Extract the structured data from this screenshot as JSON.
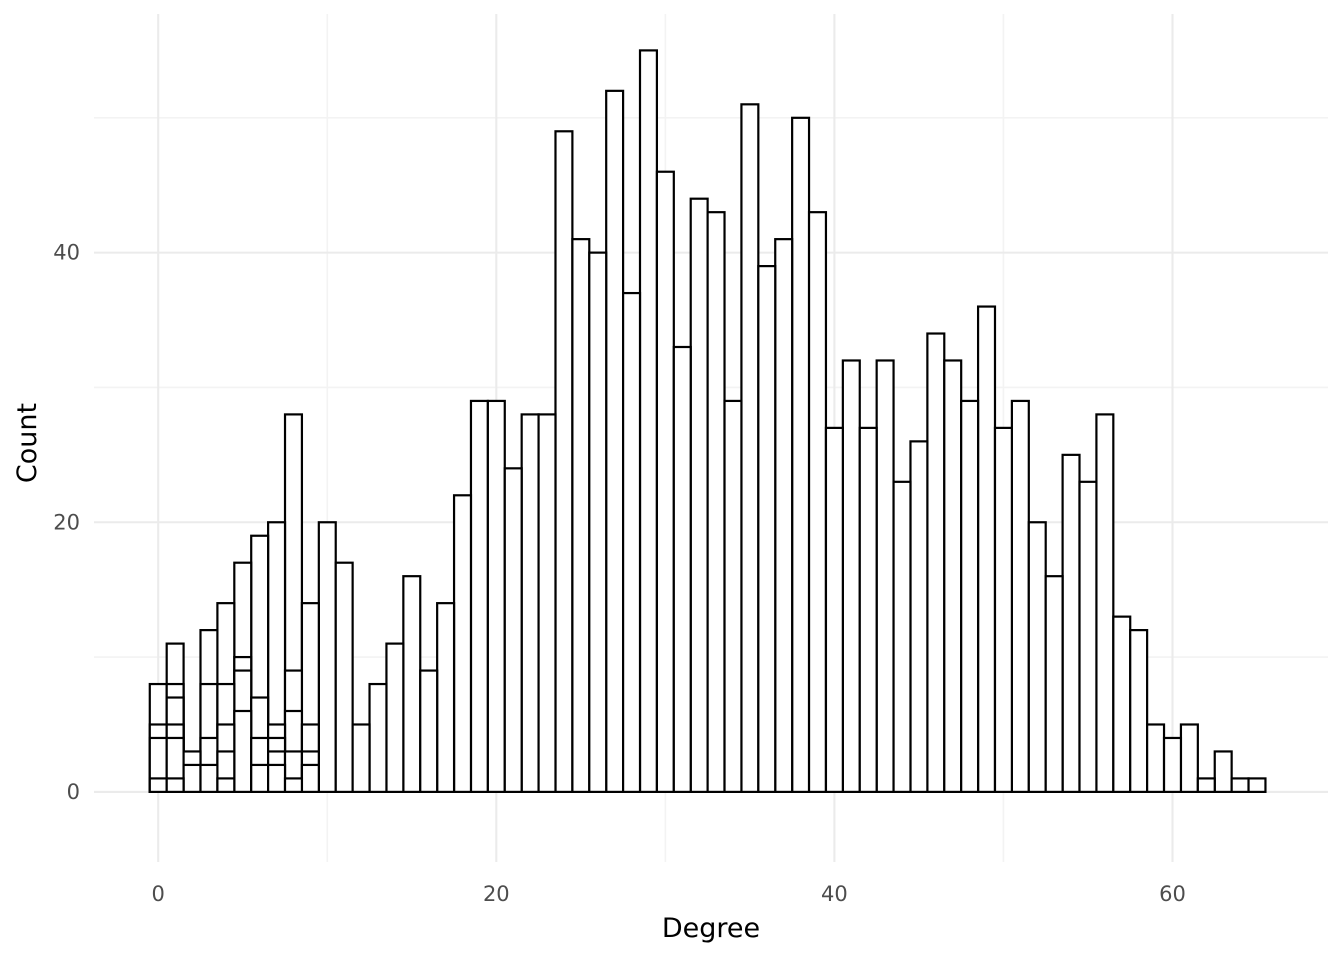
{
  "chart_data": {
    "type": "bar",
    "title": "",
    "xlabel": "Degree",
    "ylabel": "Count",
    "xlim": [
      -3.8,
      69.2
    ],
    "ylim": [
      -5.2,
      57.7
    ],
    "x_ticks": [
      0,
      20,
      40,
      60
    ],
    "y_ticks": [
      0,
      20,
      40
    ],
    "grid": true,
    "legend": "none",
    "binwidth": 1,
    "series": [
      {
        "values": [
          {
            "x": 0,
            "y": 8
          },
          {
            "x": 0,
            "y": 5
          },
          {
            "x": 0,
            "y": 4
          },
          {
            "x": 0,
            "y": 1
          },
          {
            "x": 1,
            "y": 11
          },
          {
            "x": 1,
            "y": 8
          },
          {
            "x": 1,
            "y": 7
          },
          {
            "x": 1,
            "y": 5
          },
          {
            "x": 1,
            "y": 4
          },
          {
            "x": 1,
            "y": 1
          },
          {
            "x": 2,
            "y": 3
          },
          {
            "x": 2,
            "y": 2
          },
          {
            "x": 3,
            "y": 12
          },
          {
            "x": 3,
            "y": 8
          },
          {
            "x": 3,
            "y": 4
          },
          {
            "x": 3,
            "y": 2
          },
          {
            "x": 4,
            "y": 14
          },
          {
            "x": 4,
            "y": 8
          },
          {
            "x": 4,
            "y": 5
          },
          {
            "x": 4,
            "y": 3
          },
          {
            "x": 4,
            "y": 1
          },
          {
            "x": 5,
            "y": 17
          },
          {
            "x": 5,
            "y": 10
          },
          {
            "x": 5,
            "y": 9
          },
          {
            "x": 5,
            "y": 6
          },
          {
            "x": 6,
            "y": 19
          },
          {
            "x": 6,
            "y": 7
          },
          {
            "x": 6,
            "y": 4
          },
          {
            "x": 6,
            "y": 2
          },
          {
            "x": 7,
            "y": 20
          },
          {
            "x": 7,
            "y": 5
          },
          {
            "x": 7,
            "y": 4
          },
          {
            "x": 7,
            "y": 3
          },
          {
            "x": 7,
            "y": 2
          },
          {
            "x": 8,
            "y": 28
          },
          {
            "x": 8,
            "y": 9
          },
          {
            "x": 8,
            "y": 6
          },
          {
            "x": 8,
            "y": 3
          },
          {
            "x": 8,
            "y": 1
          },
          {
            "x": 9,
            "y": 14
          },
          {
            "x": 9,
            "y": 5
          },
          {
            "x": 9,
            "y": 3
          },
          {
            "x": 9,
            "y": 2
          },
          {
            "x": 10,
            "y": 20
          },
          {
            "x": 11,
            "y": 17
          },
          {
            "x": 12,
            "y": 5
          },
          {
            "x": 13,
            "y": 8
          },
          {
            "x": 14,
            "y": 11
          },
          {
            "x": 15,
            "y": 16
          },
          {
            "x": 16,
            "y": 9
          },
          {
            "x": 17,
            "y": 14
          },
          {
            "x": 18,
            "y": 22
          },
          {
            "x": 19,
            "y": 29
          },
          {
            "x": 20,
            "y": 29
          },
          {
            "x": 21,
            "y": 24
          },
          {
            "x": 22,
            "y": 28
          },
          {
            "x": 23,
            "y": 28
          },
          {
            "x": 24,
            "y": 49
          },
          {
            "x": 25,
            "y": 41
          },
          {
            "x": 26,
            "y": 40
          },
          {
            "x": 27,
            "y": 52
          },
          {
            "x": 28,
            "y": 37
          },
          {
            "x": 29,
            "y": 55
          },
          {
            "x": 30,
            "y": 46
          },
          {
            "x": 31,
            "y": 33
          },
          {
            "x": 32,
            "y": 44
          },
          {
            "x": 33,
            "y": 43
          },
          {
            "x": 34,
            "y": 29
          },
          {
            "x": 35,
            "y": 51
          },
          {
            "x": 36,
            "y": 39
          },
          {
            "x": 37,
            "y": 41
          },
          {
            "x": 38,
            "y": 50
          },
          {
            "x": 39,
            "y": 43
          },
          {
            "x": 40,
            "y": 27
          },
          {
            "x": 41,
            "y": 32
          },
          {
            "x": 42,
            "y": 27
          },
          {
            "x": 43,
            "y": 32
          },
          {
            "x": 44,
            "y": 23
          },
          {
            "x": 45,
            "y": 26
          },
          {
            "x": 46,
            "y": 34
          },
          {
            "x": 47,
            "y": 32
          },
          {
            "x": 48,
            "y": 29
          },
          {
            "x": 49,
            "y": 36
          },
          {
            "x": 50,
            "y": 27
          },
          {
            "x": 51,
            "y": 29
          },
          {
            "x": 52,
            "y": 20
          },
          {
            "x": 53,
            "y": 16
          },
          {
            "x": 54,
            "y": 25
          },
          {
            "x": 55,
            "y": 23
          },
          {
            "x": 56,
            "y": 28
          },
          {
            "x": 57,
            "y": 13
          },
          {
            "x": 58,
            "y": 12
          },
          {
            "x": 59,
            "y": 5
          },
          {
            "x": 60,
            "y": 4
          },
          {
            "x": 61,
            "y": 5
          },
          {
            "x": 62,
            "y": 1
          },
          {
            "x": 63,
            "y": 3
          },
          {
            "x": 64,
            "y": 1
          },
          {
            "x": 65,
            "y": 1
          }
        ]
      }
    ]
  }
}
